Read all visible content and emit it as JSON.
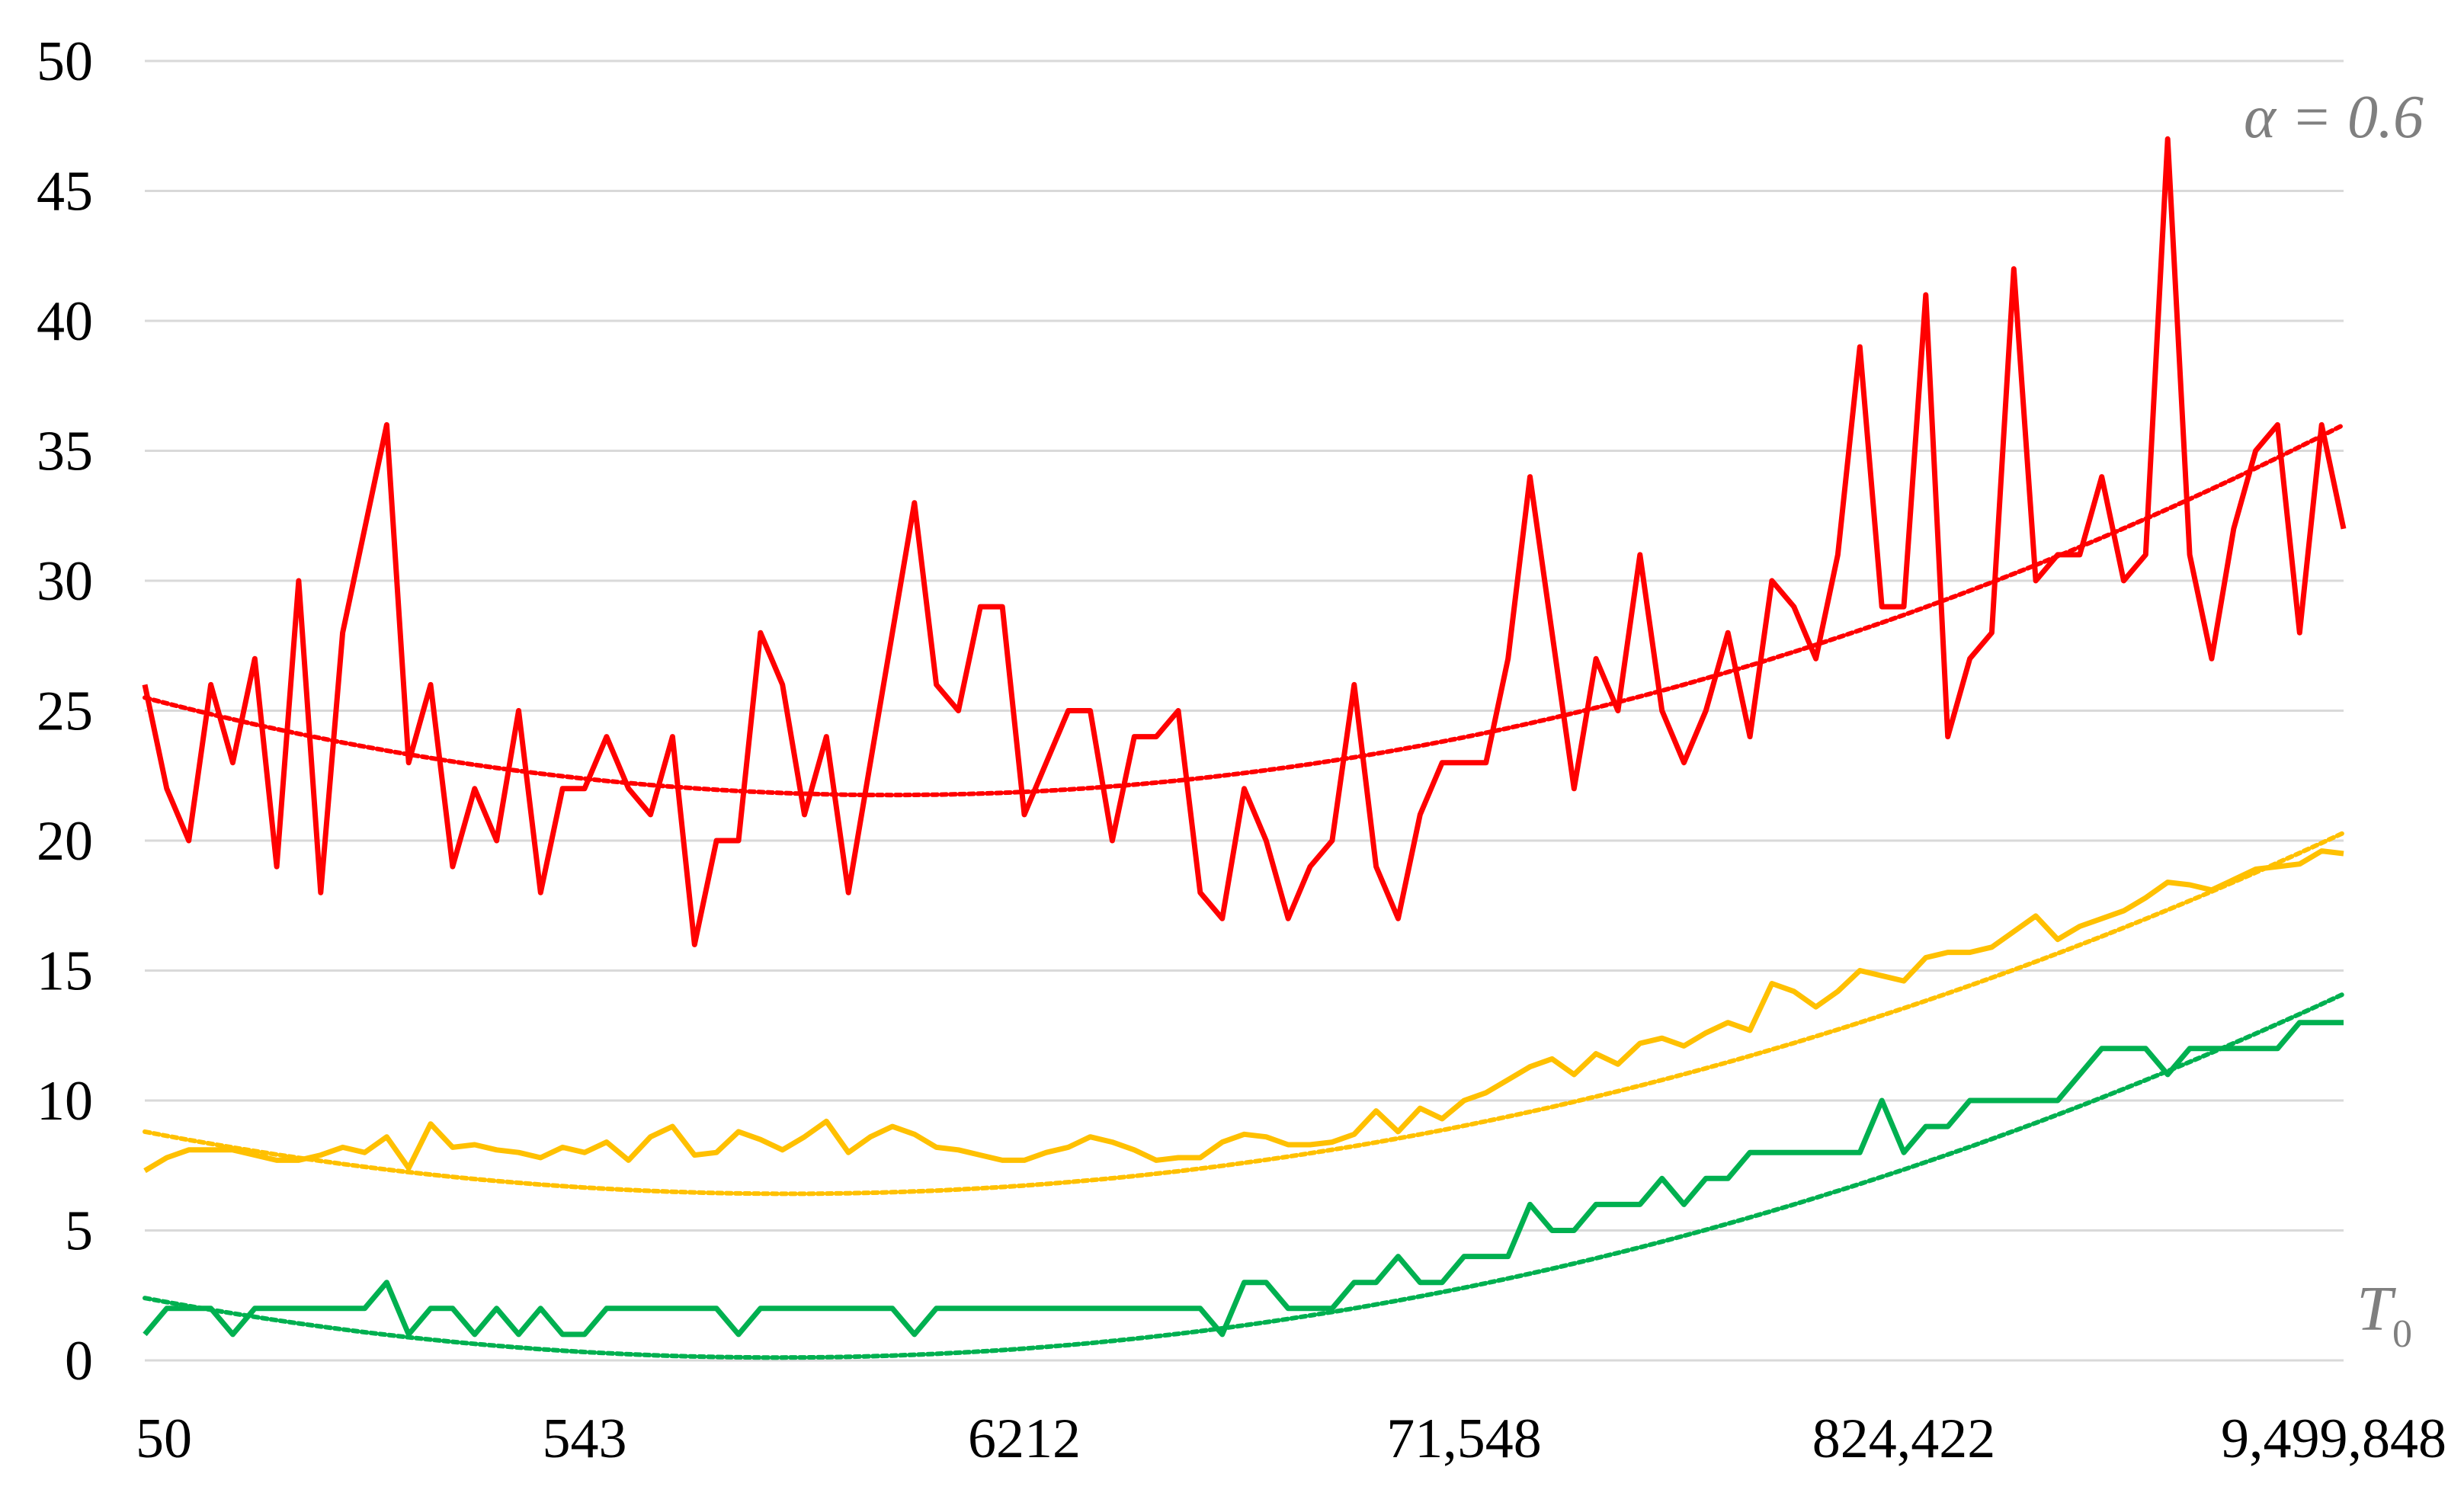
{
  "chart_data": {
    "type": "line",
    "title": "",
    "xlabel": "T0",
    "ylabel": "",
    "ylim": [
      0,
      50
    ],
    "yticks": [
      0,
      5,
      10,
      15,
      20,
      25,
      30,
      35,
      40,
      45,
      50
    ],
    "x_scale": "log",
    "x_tick_labels": [
      "50",
      "543",
      "6212",
      "71,548",
      "824,422",
      "9,499,848"
    ],
    "grid": true,
    "annotation": "α = 0.6",
    "axis_label": {
      "main": "T",
      "sub": "0"
    },
    "series": [
      {
        "color": "#ff0000",
        "values": [
          26,
          22,
          20,
          26,
          23,
          27,
          19,
          30,
          18,
          28,
          32,
          36,
          23,
          26,
          19,
          22,
          20,
          25,
          18,
          22,
          22,
          24,
          22,
          21,
          24,
          16,
          20,
          20,
          28,
          26,
          21,
          24,
          18,
          23,
          28,
          33,
          26,
          25,
          29,
          29,
          21,
          23,
          25,
          25,
          20,
          24,
          24,
          25,
          18,
          17,
          22,
          20,
          17,
          19,
          20,
          26,
          19,
          17,
          21,
          23,
          23,
          23,
          27,
          34,
          28,
          22,
          27,
          25,
          31,
          25,
          23,
          25,
          28,
          24,
          30,
          29,
          27,
          31,
          39,
          29,
          29,
          41,
          24,
          27,
          28,
          42,
          30,
          31,
          31,
          34,
          30,
          31,
          47,
          31,
          27,
          32,
          35,
          36,
          28,
          36,
          32
        ],
        "trend": [
          25.5,
          22.6,
          36.0
        ]
      },
      {
        "color": "#ffc000",
        "values": [
          7.3,
          7.8,
          8.1,
          8.1,
          8.1,
          7.9,
          7.7,
          7.7,
          7.9,
          8.2,
          8.0,
          8.6,
          7.4,
          9.1,
          8.2,
          8.3,
          8.1,
          8.0,
          7.8,
          8.2,
          8.0,
          8.4,
          7.7,
          8.6,
          9.0,
          7.9,
          8.0,
          8.8,
          8.5,
          8.1,
          8.6,
          9.2,
          8.0,
          8.6,
          9.0,
          8.7,
          8.2,
          8.1,
          7.9,
          7.7,
          7.7,
          8.0,
          8.2,
          8.6,
          8.4,
          8.1,
          7.7,
          7.8,
          7.8,
          8.4,
          8.7,
          8.6,
          8.3,
          8.3,
          8.4,
          8.7,
          9.6,
          8.8,
          9.7,
          9.3,
          10.0,
          10.3,
          10.8,
          11.3,
          11.6,
          11.0,
          11.8,
          11.4,
          12.2,
          12.4,
          12.1,
          12.6,
          13.0,
          12.7,
          14.5,
          14.2,
          13.6,
          14.2,
          15.0,
          14.8,
          14.6,
          15.5,
          15.7,
          15.7,
          15.9,
          16.5,
          17.1,
          16.2,
          16.7,
          17.0,
          17.3,
          17.8,
          18.4,
          18.3,
          18.1,
          18.5,
          18.9,
          19.0,
          19.1,
          19.6,
          19.5
        ],
        "trend": [
          8.8,
          7.6,
          20.3
        ]
      },
      {
        "color": "#00b050",
        "values": [
          1,
          2,
          2,
          2,
          1,
          2,
          2,
          2,
          2,
          2,
          2,
          3,
          1,
          2,
          2,
          1,
          2,
          1,
          2,
          1,
          1,
          2,
          2,
          2,
          2,
          2,
          2,
          1,
          2,
          2,
          2,
          2,
          2,
          2,
          2,
          1,
          2,
          2,
          2,
          2,
          2,
          2,
          2,
          2,
          2,
          2,
          2,
          2,
          2,
          1,
          3,
          3,
          2,
          2,
          2,
          3,
          3,
          4,
          3,
          3,
          4,
          4,
          4,
          6,
          5,
          5,
          6,
          6,
          6,
          7,
          6,
          7,
          7,
          8,
          8,
          8,
          8,
          8,
          8,
          10,
          8,
          9,
          9,
          10,
          10,
          10,
          10,
          10,
          11,
          12,
          12,
          12,
          11,
          12,
          12,
          12,
          12,
          12,
          13,
          13,
          13
        ],
        "trend": [
          2.4,
          1.35,
          14.1
        ]
      }
    ]
  }
}
